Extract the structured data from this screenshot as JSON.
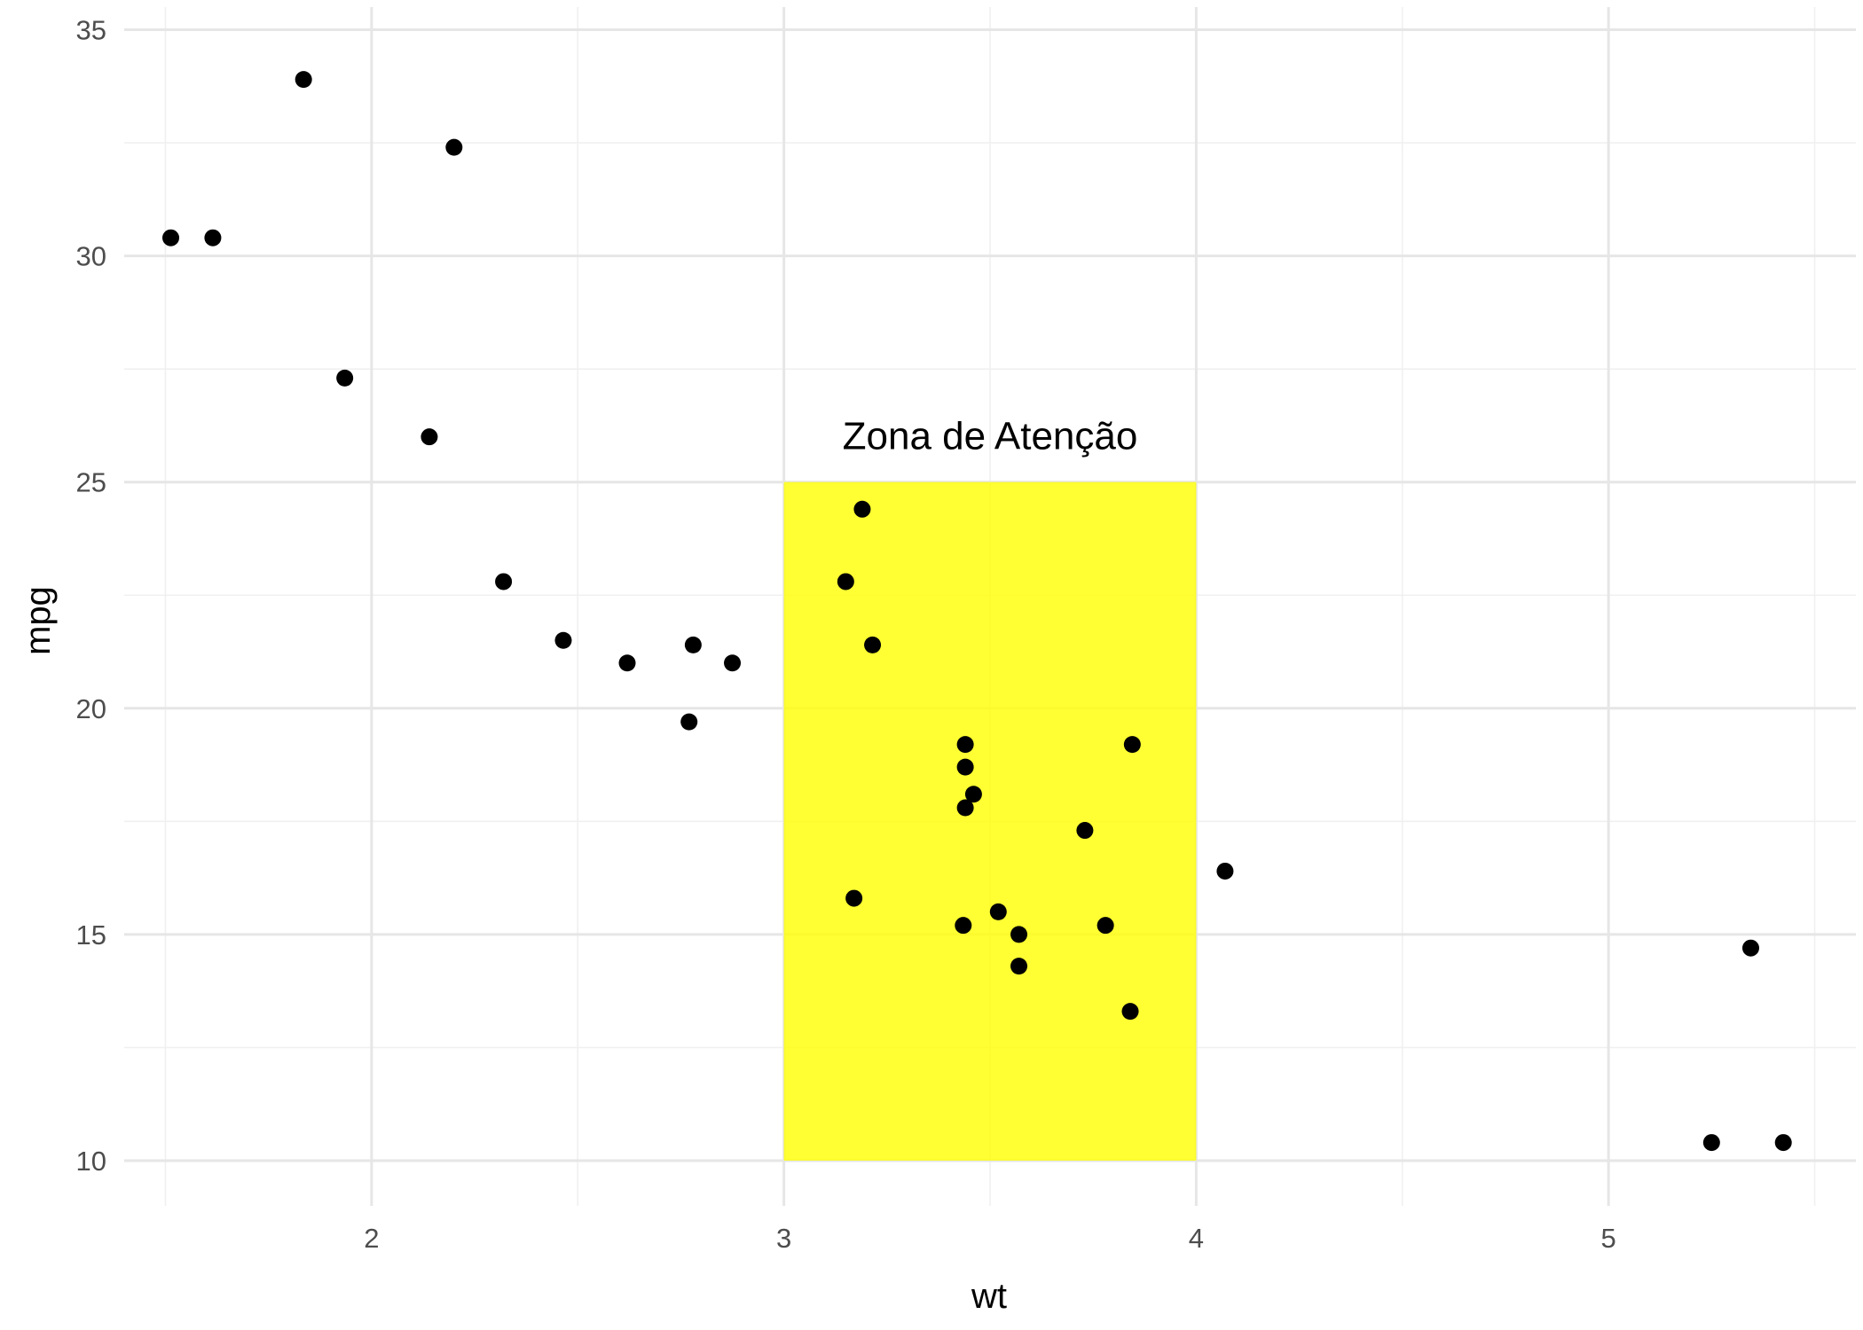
{
  "chart_data": {
    "type": "scatter",
    "xlabel": "wt",
    "ylabel": "mpg",
    "xlim": [
      1.4,
      5.6
    ],
    "ylim": [
      9,
      35.5
    ],
    "x_ticks": [
      2,
      3,
      4,
      5
    ],
    "y_ticks": [
      10,
      15,
      20,
      25,
      30,
      35
    ],
    "x_minor": [
      1.5,
      2.5,
      3.5,
      4.5,
      5.5
    ],
    "y_minor": [
      12.5,
      17.5,
      22.5,
      27.5,
      32.5
    ],
    "grid": true,
    "point_color": "#000000",
    "highlight": {
      "x": [
        3,
        4
      ],
      "y": [
        10,
        25
      ],
      "color": "#ffff00",
      "label": "Zona de Atenção",
      "label_x": 3.5,
      "label_y": 26
    },
    "points": [
      {
        "x": 1.513,
        "y": 30.4
      },
      {
        "x": 1.615,
        "y": 30.4
      },
      {
        "x": 1.835,
        "y": 33.9
      },
      {
        "x": 1.935,
        "y": 27.3
      },
      {
        "x": 2.14,
        "y": 26.0
      },
      {
        "x": 2.2,
        "y": 32.4
      },
      {
        "x": 2.32,
        "y": 22.8
      },
      {
        "x": 2.465,
        "y": 21.5
      },
      {
        "x": 2.62,
        "y": 21.0
      },
      {
        "x": 2.77,
        "y": 19.7
      },
      {
        "x": 2.78,
        "y": 21.4
      },
      {
        "x": 2.875,
        "y": 21.0
      },
      {
        "x": 3.15,
        "y": 22.8
      },
      {
        "x": 3.17,
        "y": 15.8
      },
      {
        "x": 3.19,
        "y": 24.4
      },
      {
        "x": 3.215,
        "y": 21.4
      },
      {
        "x": 3.435,
        "y": 15.2
      },
      {
        "x": 3.44,
        "y": 18.7
      },
      {
        "x": 3.44,
        "y": 19.2
      },
      {
        "x": 3.44,
        "y": 17.8
      },
      {
        "x": 3.46,
        "y": 18.1
      },
      {
        "x": 3.52,
        "y": 15.5
      },
      {
        "x": 3.57,
        "y": 15.0
      },
      {
        "x": 3.57,
        "y": 14.3
      },
      {
        "x": 3.73,
        "y": 17.3
      },
      {
        "x": 3.78,
        "y": 15.2
      },
      {
        "x": 3.84,
        "y": 13.3
      },
      {
        "x": 3.845,
        "y": 19.2
      },
      {
        "x": 4.07,
        "y": 16.4
      },
      {
        "x": 5.25,
        "y": 10.4
      },
      {
        "x": 5.345,
        "y": 14.7
      },
      {
        "x": 5.424,
        "y": 10.4
      }
    ]
  }
}
